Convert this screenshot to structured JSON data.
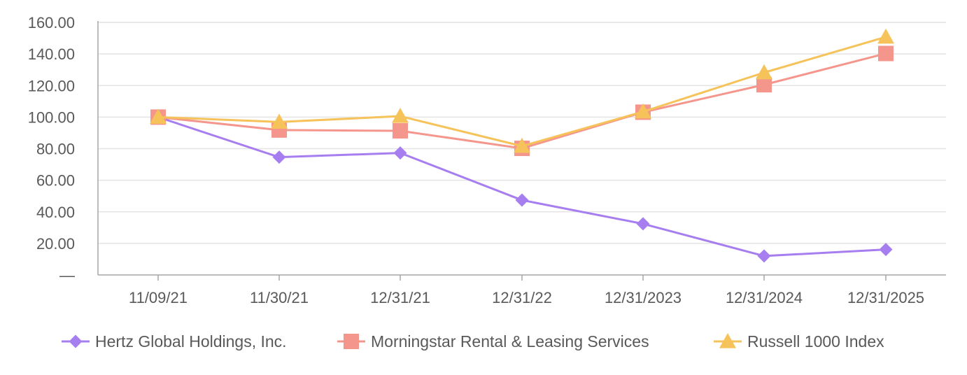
{
  "chart_data": {
    "type": "line",
    "title": "",
    "xlabel": "",
    "ylabel": "",
    "categories": [
      "11/09/21",
      "11/30/21",
      "12/31/21",
      "12/31/22",
      "12/31/2023",
      "12/31/2024",
      "12/31/2025"
    ],
    "y_ticks": [
      "—",
      "20.00",
      "40.00",
      "60.00",
      "80.00",
      "100.00",
      "120.00",
      "140.00",
      "160.00"
    ],
    "ylim": [
      0,
      160
    ],
    "grid": true,
    "legend_position": "bottom",
    "series": [
      {
        "name": "Hertz Global Holdings, Inc.",
        "marker": "diamond",
        "color": "#a77ef0",
        "values": [
          100.0,
          74.6,
          77.3,
          47.4,
          32.4,
          12.0,
          16.1
        ]
      },
      {
        "name": "Morningstar Rental & Leasing Services",
        "marker": "square",
        "color": "#f5968d",
        "values": [
          100.0,
          91.8,
          91.3,
          80.2,
          103.1,
          120.5,
          140.3
        ]
      },
      {
        "name": "Russell 1000 Index",
        "marker": "triangle",
        "color": "#f6c25a",
        "values": [
          100.0,
          96.9,
          100.6,
          81.6,
          103.4,
          128.2,
          150.8
        ]
      }
    ]
  }
}
